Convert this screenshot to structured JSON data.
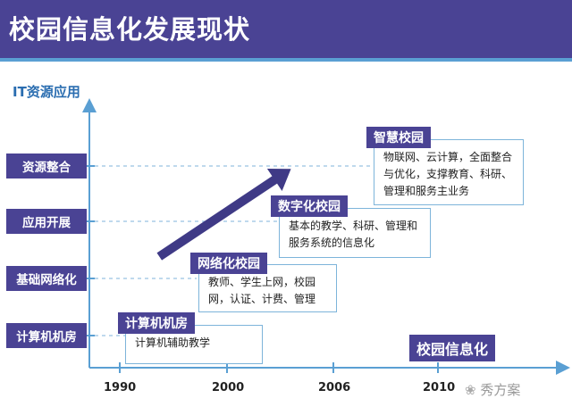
{
  "header": {
    "title": "校园信息化发展现状"
  },
  "y_axis": {
    "label": "IT资源应用",
    "levels": [
      "资源整合",
      "应用开展",
      "基础网络化",
      "计算机机房"
    ]
  },
  "x_axis": {
    "ticks": [
      "1990",
      "2000",
      "2006",
      "2010"
    ]
  },
  "stages": [
    {
      "name": "计算机机房",
      "desc": "计算机辅助教学"
    },
    {
      "name": "网络化校园",
      "desc": "教师、学生上网，校园网，认证、计费、管理"
    },
    {
      "name": "数字化校园",
      "desc": "基本的教学、科研、管理和服务系统的信息化"
    },
    {
      "name": "智慧校园",
      "desc": "物联网、云计算，全面整合与优化，支撑教育、科研、管理和服务主业务"
    }
  ],
  "tag": "校园信息化",
  "watermark": "秀方案",
  "colors": {
    "primary": "#4a4394",
    "accent": "#5a9fd3",
    "axis": "#5a9fd3"
  }
}
